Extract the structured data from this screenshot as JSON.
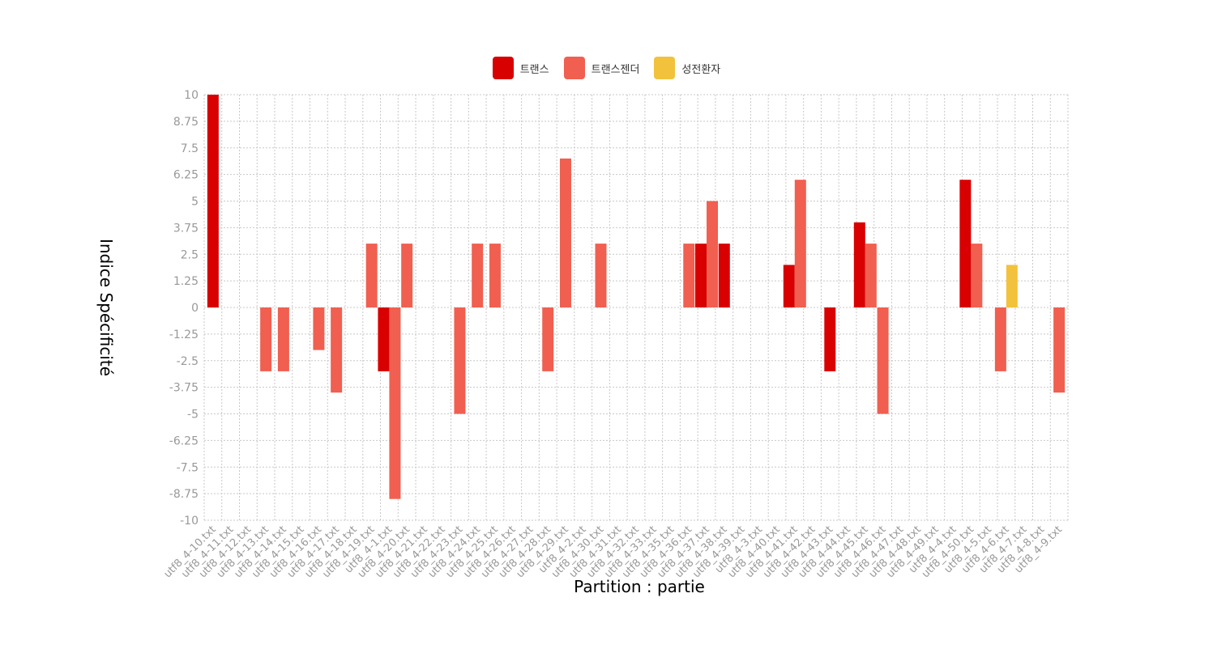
{
  "chart_data": {
    "type": "bar",
    "xlabel": "Partition : partie",
    "ylabel": "Indice Spécificité",
    "ylim": [
      -10,
      10
    ],
    "yticks": [
      10,
      8.75,
      7.5,
      6.25,
      5,
      3.75,
      2.5,
      1.25,
      0,
      -1.25,
      -2.5,
      -3.75,
      -5,
      -6.25,
      -7.5,
      -8.75,
      -10
    ],
    "yticklabels": [
      "10",
      "8.75",
      "7.5",
      "6.25",
      "5",
      "3.75",
      "2.5",
      "1.25",
      "0",
      "-1.25",
      "-2.5",
      "-3.75",
      "-5",
      "-6.25",
      "-7.5",
      "-8.75",
      "-10"
    ],
    "grid": true,
    "legend": "top",
    "categories": [
      "utf8_4-10.txt",
      "utf8_4-11.txt",
      "utf8_4-12.txt",
      "utf8_4-13.txt",
      "utf8_4-14.txt",
      "utf8_4-15.txt",
      "utf8_4-16.txt",
      "utf8_4-17.txt",
      "utf8_4-18.txt",
      "utf8_4-19.txt",
      "utf8_4-1.txt",
      "utf8_4-20.txt",
      "utf8_4-21.txt",
      "utf8_4-22.txt",
      "utf8_4-23.txt",
      "utf8_4-24.txt",
      "utf8_4-25.txt",
      "utf8_4-26.txt",
      "utf8_4-27.txt",
      "utf8_4-28.txt",
      "utf8_4-29.txt",
      "utf8_4-2.txt",
      "utf8_4-30.txt",
      "utf8_4-31.txt",
      "utf8_4-32.txt",
      "utf8_4-33.txt",
      "utf8_4-35.txt",
      "utf8_4-36.txt",
      "utf8_4-37.txt",
      "utf8_4-38.txt",
      "utf8_4-39.txt",
      "utf8_4-3.txt",
      "utf8_4-40.txt",
      "utf8_4-41.txt",
      "utf8_4-42.txt",
      "utf8_4-43.txt",
      "utf8_4-44.txt",
      "utf8_4-45.txt",
      "utf8_4-46.txt",
      "utf8_4-47.txt",
      "utf8_4-48.txt",
      "utf8_4-49.txt",
      "utf8_4-4.txt",
      "utf8_4-50.txt",
      "utf8_4-5.txt",
      "utf8_4-6.txt",
      "utf8_4-7.txt",
      "utf8_4-8.txt",
      "utf8_4-9.txt"
    ],
    "series": [
      {
        "name": "트랜스",
        "color": "#d80000",
        "values": [
          10,
          0,
          0,
          0,
          0,
          0,
          0,
          0,
          0,
          0,
          -3,
          0,
          0,
          0,
          0,
          0,
          0,
          0,
          0,
          0,
          0,
          0,
          0,
          0,
          0,
          0,
          0,
          0,
          3,
          3,
          0,
          0,
          0,
          2,
          0,
          -3,
          0,
          4,
          0,
          0,
          0,
          0,
          0,
          6,
          0,
          0,
          0,
          0,
          0
        ]
      },
      {
        "name": "트랜스젠더",
        "color": "#f05f50",
        "values": [
          0,
          0,
          0,
          -3,
          -3,
          0,
          -2,
          -4,
          0,
          3,
          -9,
          3,
          0,
          0,
          -5,
          3,
          3,
          0,
          0,
          -3,
          7,
          0,
          3,
          0,
          0,
          0,
          0,
          3,
          5,
          0,
          0,
          0,
          0,
          6,
          0,
          0,
          0,
          3,
          -5,
          0,
          0,
          0,
          0,
          3,
          0,
          -3,
          0,
          0,
          -4
        ]
      },
      {
        "name": "성전환자",
        "color": "#f2c23c",
        "values": [
          0,
          0,
          0,
          0,
          0,
          0,
          0,
          0,
          0,
          0,
          0,
          0,
          0,
          0,
          0,
          0,
          0,
          0,
          0,
          0,
          0,
          0,
          0,
          0,
          0,
          0,
          0,
          0,
          0,
          0,
          0,
          0,
          0,
          0,
          0,
          0,
          0,
          0,
          0,
          0,
          0,
          0,
          0,
          0,
          0,
          2,
          0,
          0,
          0
        ]
      }
    ]
  }
}
